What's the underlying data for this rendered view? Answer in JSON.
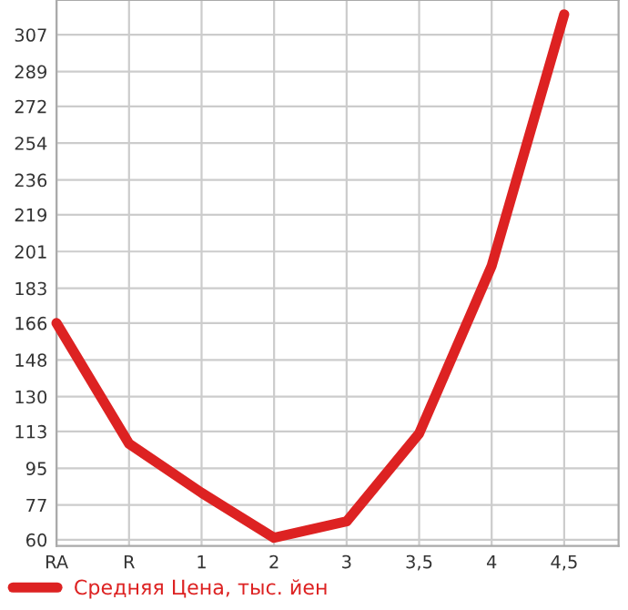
{
  "chart_data": {
    "type": "line",
    "categories": [
      "RA",
      "R",
      "1",
      "2",
      "3",
      "3,5",
      "4",
      "4,5"
    ],
    "series": [
      {
        "name": "Средняя Цена, тыс. йен",
        "color": "#dd2222",
        "values": [
          166,
          107,
          83,
          61,
          69,
          112,
          194,
          317
        ]
      }
    ],
    "ylim": [
      57,
      324
    ],
    "yticks": [
      60,
      77,
      95,
      113,
      130,
      148,
      166,
      183,
      201,
      219,
      236,
      254,
      272,
      289,
      307
    ],
    "grid": true,
    "legend": "bottom",
    "marker": "none",
    "line_style": "solid"
  }
}
